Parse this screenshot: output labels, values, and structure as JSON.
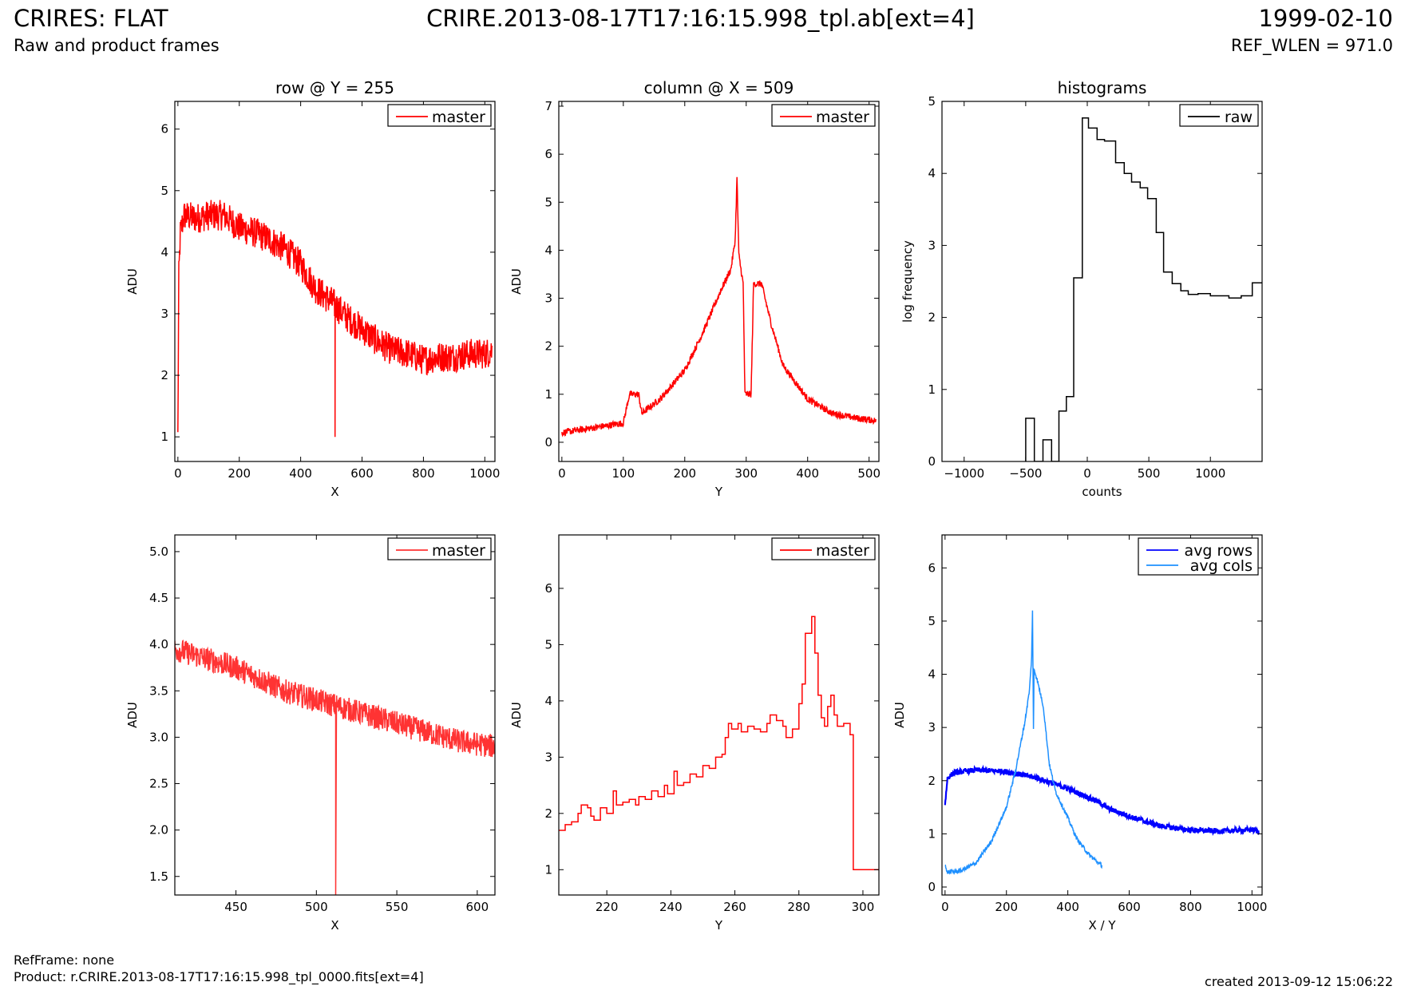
{
  "header": {
    "title_left": "CRIRES: FLAT",
    "subtitle_left": "Raw and product frames",
    "title_center": "CRIRE.2013-08-17T17:16:15.998_tpl.ab[ext=4]",
    "title_right": "1999-02-10",
    "subtitle_right": "REF_WLEN = 971.0"
  },
  "footer": {
    "refframe": "RefFrame: none",
    "product": "Product: r.CRIRE.2013-08-17T17:16:15.998_tpl_0000.fits[ext=4]",
    "created": "created 2013-09-12 15:06:22"
  },
  "colors": {
    "master": "#ff0000",
    "raw": "#000000",
    "avg_rows": "#0000ff",
    "avg_cols": "#1e90ff"
  },
  "chart_data": [
    {
      "id": "row-full",
      "type": "line",
      "title": "row @ Y = 255",
      "xlabel": "X",
      "ylabel": "ADU",
      "xlim": [
        -10,
        1033
      ],
      "ylim": [
        0.6,
        6.45
      ],
      "xticks": [
        0,
        200,
        400,
        600,
        800,
        1000
      ],
      "yticks": [
        1,
        2,
        3,
        4,
        5,
        6
      ],
      "legend": {
        "position": "top-right",
        "entries": [
          "master"
        ]
      },
      "series": [
        {
          "name": "master",
          "color": "#ff0000",
          "noise": 0.25,
          "points": [
            [
              0,
              1.0
            ],
            [
              3,
              3.6
            ],
            [
              8,
              4.3
            ],
            [
              20,
              4.6
            ],
            [
              60,
              4.55
            ],
            [
              100,
              4.6
            ],
            [
              150,
              4.6
            ],
            [
              200,
              4.4
            ],
            [
              260,
              4.3
            ],
            [
              300,
              4.2
            ],
            [
              350,
              4.05
            ],
            [
              400,
              3.8
            ],
            [
              450,
              3.4
            ],
            [
              500,
              3.2
            ],
            [
              550,
              2.95
            ],
            [
              600,
              2.75
            ],
            [
              650,
              2.55
            ],
            [
              700,
              2.4
            ],
            [
              750,
              2.35
            ],
            [
              800,
              2.25
            ],
            [
              850,
              2.3
            ],
            [
              900,
              2.3
            ],
            [
              950,
              2.35
            ],
            [
              1000,
              2.35
            ],
            [
              1023,
              2.4
            ]
          ],
          "spikes": [
            [
              512,
              1.0
            ]
          ]
        }
      ]
    },
    {
      "id": "col-full",
      "type": "line",
      "title": "column @ X = 509",
      "xlabel": "Y",
      "ylabel": "ADU",
      "xlim": [
        -5,
        516
      ],
      "ylim": [
        -0.4,
        7.1
      ],
      "xticks": [
        0,
        100,
        200,
        300,
        400,
        500
      ],
      "yticks": [
        0,
        1,
        2,
        3,
        4,
        5,
        6,
        7
      ],
      "legend": {
        "position": "top-right",
        "entries": [
          "master"
        ]
      },
      "series": [
        {
          "name": "master",
          "color": "#ff0000",
          "noise": 0.07,
          "points": [
            [
              0,
              0.2
            ],
            [
              50,
              0.3
            ],
            [
              100,
              0.4
            ],
            [
              110,
              1.0
            ],
            [
              125,
              1.0
            ],
            [
              130,
              0.6
            ],
            [
              160,
              0.9
            ],
            [
              200,
              1.5
            ],
            [
              230,
              2.3
            ],
            [
              260,
              3.2
            ],
            [
              275,
              3.6
            ],
            [
              282,
              4.2
            ],
            [
              285,
              5.5
            ],
            [
              288,
              3.9
            ],
            [
              295,
              3.3
            ],
            [
              298,
              1.0
            ],
            [
              308,
              1.0
            ],
            [
              312,
              3.3
            ],
            [
              325,
              3.3
            ],
            [
              340,
              2.5
            ],
            [
              360,
              1.6
            ],
            [
              400,
              0.9
            ],
            [
              440,
              0.6
            ],
            [
              480,
              0.5
            ],
            [
              511,
              0.45
            ]
          ]
        }
      ]
    },
    {
      "id": "histogram",
      "type": "step",
      "title": "histograms",
      "xlabel": "counts",
      "ylabel": "log frequency",
      "xlim": [
        -1180,
        1420
      ],
      "ylim": [
        0,
        5
      ],
      "xticks": [
        -1000,
        -500,
        0,
        500,
        1000
      ],
      "yticks": [
        0,
        1,
        2,
        3,
        4,
        5
      ],
      "legend": {
        "position": "top-right",
        "entries": [
          "raw"
        ]
      },
      "series": [
        {
          "name": "raw",
          "color": "#000000",
          "points": [
            [
              -500,
              0
            ],
            [
              -500,
              0.6
            ],
            [
              -430,
              0.6
            ],
            [
              -430,
              0
            ],
            [
              -360,
              0
            ],
            [
              -360,
              0.3
            ],
            [
              -290,
              0.3
            ],
            [
              -290,
              0
            ],
            [
              -230,
              0
            ],
            [
              -230,
              0.7
            ],
            [
              -170,
              0.7
            ],
            [
              -170,
              0.9
            ],
            [
              -110,
              0.9
            ],
            [
              -110,
              2.55
            ],
            [
              -40,
              2.55
            ],
            [
              -40,
              4.77
            ],
            [
              10,
              4.77
            ],
            [
              10,
              4.63
            ],
            [
              80,
              4.63
            ],
            [
              80,
              4.47
            ],
            [
              140,
              4.47
            ],
            [
              140,
              4.45
            ],
            [
              230,
              4.45
            ],
            [
              230,
              4.15
            ],
            [
              300,
              4.15
            ],
            [
              300,
              4.0
            ],
            [
              360,
              4.0
            ],
            [
              360,
              3.88
            ],
            [
              430,
              3.88
            ],
            [
              430,
              3.8
            ],
            [
              490,
              3.8
            ],
            [
              490,
              3.65
            ],
            [
              560,
              3.65
            ],
            [
              560,
              3.18
            ],
            [
              620,
              3.18
            ],
            [
              620,
              2.63
            ],
            [
              690,
              2.63
            ],
            [
              690,
              2.47
            ],
            [
              760,
              2.47
            ],
            [
              760,
              2.37
            ],
            [
              820,
              2.37
            ],
            [
              820,
              2.32
            ],
            [
              900,
              2.32
            ],
            [
              900,
              2.33
            ],
            [
              1000,
              2.33
            ],
            [
              1000,
              2.3
            ],
            [
              1150,
              2.3
            ],
            [
              1150,
              2.27
            ],
            [
              1250,
              2.27
            ],
            [
              1250,
              2.3
            ],
            [
              1340,
              2.3
            ],
            [
              1340,
              2.48
            ],
            [
              1420,
              2.48
            ]
          ]
        }
      ]
    },
    {
      "id": "row-zoom",
      "type": "line",
      "title": "",
      "xlabel": "X",
      "ylabel": "ADU",
      "xlim": [
        412,
        611
      ],
      "ylim": [
        1.3,
        5.18
      ],
      "xticks": [
        450,
        500,
        550,
        600
      ],
      "yticks": [
        1.5,
        2.0,
        2.5,
        3.0,
        3.5,
        4.0,
        4.5,
        5.0
      ],
      "ytick_labels": [
        "1.5",
        "2.0",
        "2.5",
        "3.0",
        "3.5",
        "4.0",
        "4.5",
        "5.0"
      ],
      "legend": {
        "position": "top-right",
        "entries": [
          "master"
        ]
      },
      "series": [
        {
          "name": "master",
          "color": "#ff3333",
          "noise": 0.13,
          "points": [
            [
              412,
              3.95
            ],
            [
              450,
              3.75
            ],
            [
              480,
              3.5
            ],
            [
              500,
              3.4
            ],
            [
              530,
              3.25
            ],
            [
              560,
              3.1
            ],
            [
              590,
              2.95
            ],
            [
              611,
              2.9
            ]
          ],
          "spikes": [
            [
              512,
              1.3
            ]
          ]
        }
      ]
    },
    {
      "id": "col-zoom",
      "type": "step",
      "title": "",
      "xlabel": "Y",
      "ylabel": "ADU",
      "xlim": [
        205,
        305
      ],
      "ylim": [
        0.55,
        6.95
      ],
      "xticks": [
        220,
        240,
        260,
        280,
        300
      ],
      "yticks": [
        1,
        2,
        3,
        4,
        5,
        6
      ],
      "legend": {
        "position": "top-right",
        "entries": [
          "master"
        ]
      },
      "series": [
        {
          "name": "master",
          "color": "#ff0000",
          "points": [
            [
              205,
              1.7
            ],
            [
              207,
              1.8
            ],
            [
              209,
              1.85
            ],
            [
              211,
              2.0
            ],
            [
              212,
              2.15
            ],
            [
              214,
              2.1
            ],
            [
              215,
              1.95
            ],
            [
              216,
              1.88
            ],
            [
              218,
              2.1
            ],
            [
              220,
              2.0
            ],
            [
              222,
              2.4
            ],
            [
              223,
              2.15
            ],
            [
              225,
              2.2
            ],
            [
              227,
              2.25
            ],
            [
              229,
              2.15
            ],
            [
              230,
              2.3
            ],
            [
              232,
              2.25
            ],
            [
              234,
              2.4
            ],
            [
              236,
              2.3
            ],
            [
              238,
              2.5
            ],
            [
              239,
              2.35
            ],
            [
              241,
              2.75
            ],
            [
              242,
              2.5
            ],
            [
              244,
              2.55
            ],
            [
              246,
              2.7
            ],
            [
              248,
              2.65
            ],
            [
              250,
              2.85
            ],
            [
              252,
              2.8
            ],
            [
              254,
              3.0
            ],
            [
              256,
              3.05
            ],
            [
              257,
              3.35
            ],
            [
              258,
              3.6
            ],
            [
              259,
              3.5
            ],
            [
              261,
              3.6
            ],
            [
              262,
              3.45
            ],
            [
              264,
              3.55
            ],
            [
              266,
              3.5
            ],
            [
              268,
              3.45
            ],
            [
              270,
              3.6
            ],
            [
              271,
              3.75
            ],
            [
              273,
              3.65
            ],
            [
              275,
              3.55
            ],
            [
              276,
              3.35
            ],
            [
              278,
              3.5
            ],
            [
              280,
              3.95
            ],
            [
              281,
              4.3
            ],
            [
              282,
              5.2
            ],
            [
              283,
              5.2
            ],
            [
              284,
              5.5
            ],
            [
              285,
              4.85
            ],
            [
              286,
              4.1
            ],
            [
              287,
              3.7
            ],
            [
              288,
              3.55
            ],
            [
              289,
              3.9
            ],
            [
              290,
              4.1
            ],
            [
              291,
              3.75
            ],
            [
              292,
              3.55
            ],
            [
              294,
              3.6
            ],
            [
              296,
              3.4
            ],
            [
              297,
              1.0
            ],
            [
              303,
              1.0
            ],
            [
              305,
              1.0
            ]
          ]
        }
      ]
    },
    {
      "id": "avg",
      "type": "line",
      "title": "",
      "xlabel": "X / Y",
      "ylabel": "ADU",
      "xlim": [
        -10,
        1033
      ],
      "ylim": [
        -0.15,
        6.62
      ],
      "xticks": [
        0,
        200,
        400,
        600,
        800,
        1000
      ],
      "yticks": [
        0,
        1,
        2,
        3,
        4,
        5,
        6
      ],
      "legend": {
        "position": "top-right",
        "entries": [
          "avg rows",
          "avg cols"
        ]
      },
      "series": [
        {
          "name": "avg rows",
          "color": "#0000ff",
          "noise": 0.05,
          "points": [
            [
              0,
              1.55
            ],
            [
              8,
              2.05
            ],
            [
              30,
              2.15
            ],
            [
              100,
              2.2
            ],
            [
              200,
              2.17
            ],
            [
              300,
              2.05
            ],
            [
              400,
              1.85
            ],
            [
              500,
              1.6
            ],
            [
              530,
              1.48
            ],
            [
              600,
              1.33
            ],
            [
              700,
              1.15
            ],
            [
              800,
              1.07
            ],
            [
              900,
              1.05
            ],
            [
              1000,
              1.08
            ],
            [
              1023,
              1.04
            ]
          ]
        },
        {
          "name": "avg cols",
          "color": "#1e90ff",
          "noise": 0.04,
          "points": [
            [
              0,
              0.45
            ],
            [
              5,
              0.28
            ],
            [
              50,
              0.3
            ],
            [
              100,
              0.45
            ],
            [
              150,
              0.85
            ],
            [
              200,
              1.5
            ],
            [
              230,
              2.2
            ],
            [
              260,
              3.1
            ],
            [
              275,
              3.7
            ],
            [
              282,
              4.3
            ],
            [
              285,
              5.2
            ],
            [
              288,
              2.95
            ],
            [
              290,
              4.1
            ],
            [
              300,
              3.9
            ],
            [
              320,
              3.4
            ],
            [
              340,
              2.3
            ],
            [
              360,
              1.8
            ],
            [
              400,
              1.3
            ],
            [
              430,
              0.9
            ],
            [
              470,
              0.6
            ],
            [
              511,
              0.4
            ]
          ]
        }
      ]
    }
  ]
}
